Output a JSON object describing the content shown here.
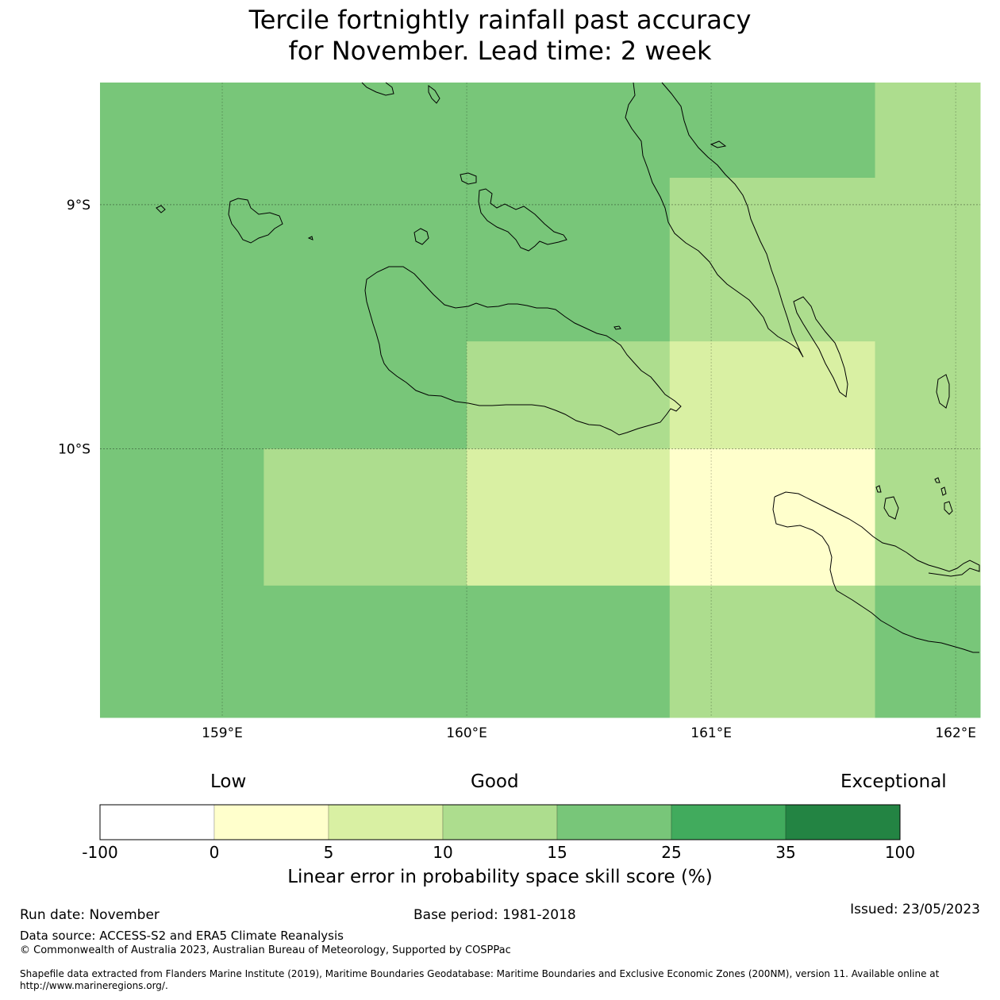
{
  "title": {
    "line1": "Tercile fortnightly rainfall past accuracy",
    "line2": "for November. Lead time: 2 week"
  },
  "map": {
    "region": "Solomon Islands",
    "x_axis": {
      "ticks": [
        "159°E",
        "160°E",
        "161°E",
        "162°E"
      ],
      "values": [
        159,
        160,
        161,
        162
      ],
      "range": [
        158.5,
        162.1
      ]
    },
    "y_axis": {
      "ticks": [
        "9°S",
        "10°S"
      ],
      "values": [
        -9,
        -10
      ],
      "range": [
        -11.1,
        -8.5
      ]
    },
    "gridlines": true,
    "cells": [
      {
        "lon": [
          158.5,
          160.83
        ],
        "lat": [
          -9.56,
          -8.5
        ],
        "class": 4
      },
      {
        "lon": [
          160.83,
          161.67
        ],
        "lat": [
          -8.89,
          -8.5
        ],
        "class": 4
      },
      {
        "lon": [
          161.67,
          162.1
        ],
        "lat": [
          -9.56,
          -8.5
        ],
        "class": 3
      },
      {
        "lon": [
          160.83,
          161.67
        ],
        "lat": [
          -9.56,
          -8.89
        ],
        "class": 3
      },
      {
        "lon": [
          158.5,
          160.0
        ],
        "lat": [
          -10.0,
          -9.56
        ],
        "class": 4
      },
      {
        "lon": [
          160.0,
          160.83
        ],
        "lat": [
          -10.0,
          -9.56
        ],
        "class": 3
      },
      {
        "lon": [
          160.83,
          161.67
        ],
        "lat": [
          -10.0,
          -9.56
        ],
        "class": 2
      },
      {
        "lon": [
          161.67,
          162.1
        ],
        "lat": [
          -10.0,
          -9.56
        ],
        "class": 3
      },
      {
        "lon": [
          158.5,
          159.17
        ],
        "lat": [
          -10.56,
          -10.0
        ],
        "class": 4
      },
      {
        "lon": [
          159.17,
          160.0
        ],
        "lat": [
          -10.56,
          -10.0
        ],
        "class": 3
      },
      {
        "lon": [
          160.0,
          160.83
        ],
        "lat": [
          -10.56,
          -10.0
        ],
        "class": 2
      },
      {
        "lon": [
          160.83,
          161.67
        ],
        "lat": [
          -10.56,
          -10.0
        ],
        "class": 1
      },
      {
        "lon": [
          161.67,
          162.1
        ],
        "lat": [
          -10.56,
          -10.0
        ],
        "class": 3
      },
      {
        "lon": [
          158.5,
          160.83
        ],
        "lat": [
          -11.1,
          -10.56
        ],
        "class": 4
      },
      {
        "lon": [
          160.83,
          161.67
        ],
        "lat": [
          -11.1,
          -10.56
        ],
        "class": 3
      },
      {
        "lon": [
          161.67,
          162.1
        ],
        "lat": [
          -11.1,
          -10.56
        ],
        "class": 4
      }
    ]
  },
  "legend": {
    "low": "Low",
    "good": "Good",
    "exceptional": "Exceptional",
    "colors": [
      "#ffffff",
      "#ffffcc",
      "#d9f0a3",
      "#addd8e",
      "#78c679",
      "#41ab5d",
      "#238443"
    ],
    "tick_labels": [
      "-100",
      "0",
      "5",
      "10",
      "15",
      "25",
      "35",
      "100"
    ],
    "label": "Linear error in probability space skill score (%)"
  },
  "footer": {
    "run_date": "Run date: November",
    "base_period": "Base period: 1981-2018",
    "issued": "Issued: 23/05/2023",
    "data_source": "Data source: ACCESS-S2 and ERA5 Climate Reanalysis",
    "copyright": "© Commonwealth of Australia 2023, Australian Bureau of Meteorology, Supported by COSPPac",
    "shapefile_line1": "Shapefile data extracted from Flanders Marine Institute (2019), Maritime Boundaries Geodatabase: Maritime Boundaries and Exclusive Economic Zones (200NM), version 11. Available online at",
    "shapefile_line2": "http://www.marineregions.org/."
  }
}
